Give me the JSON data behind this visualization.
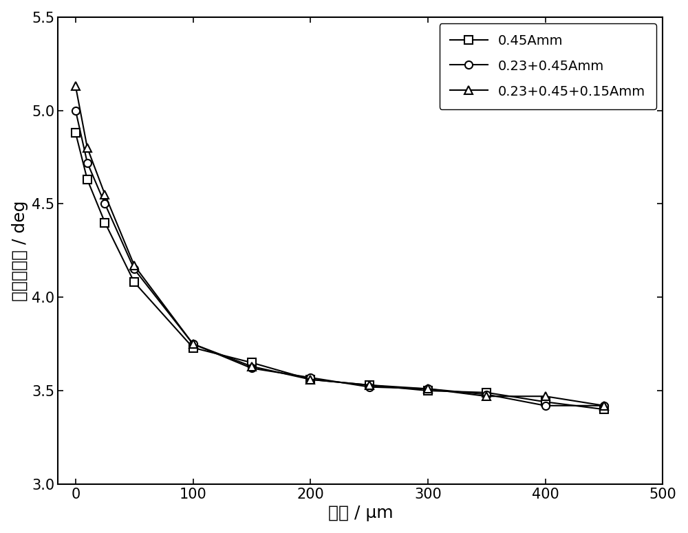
{
  "series": [
    {
      "label": "0.45Amm",
      "marker": "s",
      "x": [
        0,
        10,
        25,
        50,
        100,
        150,
        200,
        250,
        300,
        350,
        400,
        450
      ],
      "y": [
        4.88,
        4.63,
        4.4,
        4.08,
        3.73,
        3.65,
        3.56,
        3.53,
        3.5,
        3.49,
        3.44,
        3.4
      ]
    },
    {
      "label": "0.23+0.45Amm",
      "marker": "o",
      "x": [
        0,
        10,
        25,
        50,
        100,
        150,
        200,
        250,
        300,
        350,
        400,
        450
      ],
      "y": [
        5.0,
        4.72,
        4.5,
        4.15,
        3.75,
        3.62,
        3.57,
        3.52,
        3.51,
        3.48,
        3.42,
        3.42
      ]
    },
    {
      "label": "0.23+0.45+0.15Amm",
      "marker": "^",
      "x": [
        0,
        10,
        25,
        50,
        100,
        150,
        200,
        250,
        300,
        350,
        400,
        450
      ],
      "y": [
        5.13,
        4.8,
        4.55,
        4.17,
        3.75,
        3.63,
        3.56,
        3.53,
        3.51,
        3.47,
        3.47,
        3.42
      ]
    }
  ],
  "xlabel": "层深 / μm",
  "ylabel": "衍射半高宽 / deg",
  "xlim": [
    -15,
    500
  ],
  "ylim": [
    3.0,
    5.5
  ],
  "xticks": [
    0,
    100,
    200,
    300,
    400,
    500
  ],
  "yticks": [
    3.0,
    3.5,
    4.0,
    4.5,
    5.0,
    5.5
  ],
  "line_color": "#000000",
  "marker_size": 8,
  "linewidth": 1.5,
  "legend_fontsize": 14,
  "axis_fontsize": 18,
  "tick_fontsize": 15,
  "background_color": "#ffffff"
}
